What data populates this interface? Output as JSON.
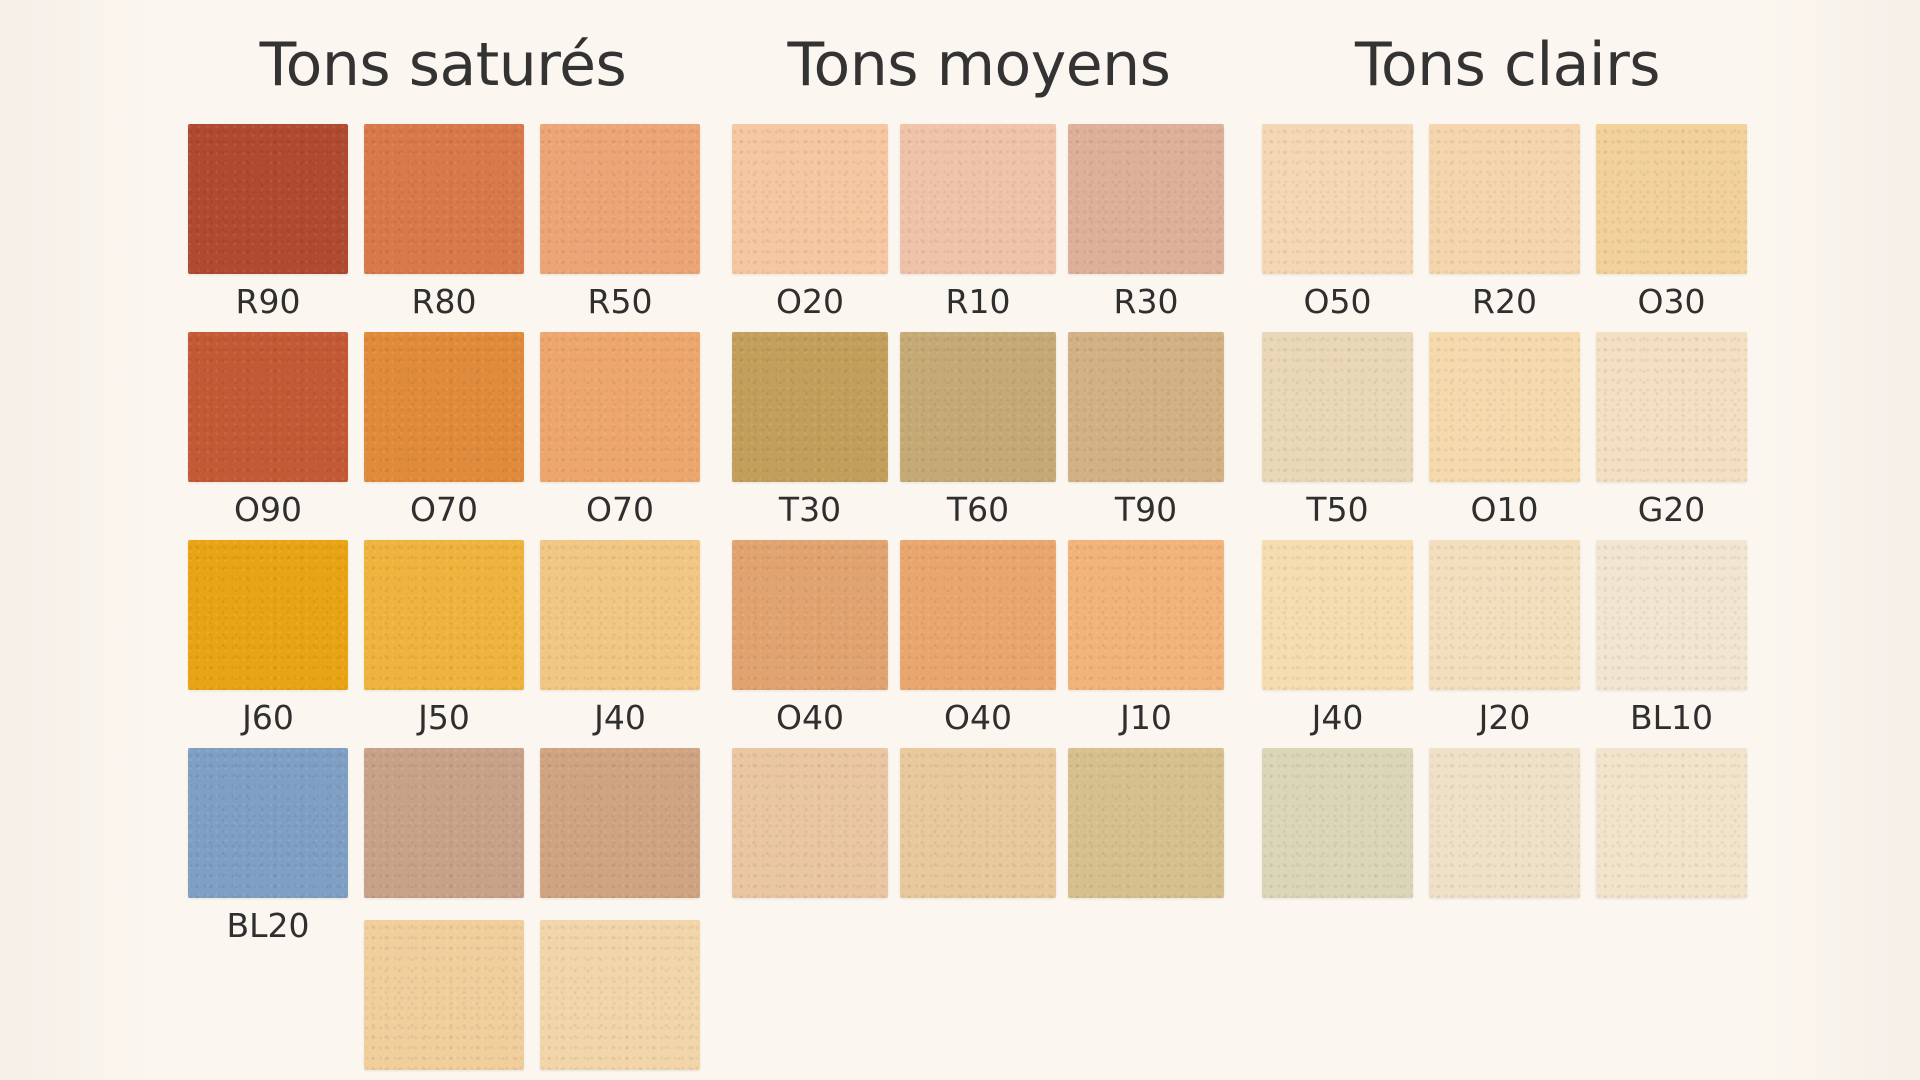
{
  "groups": [
    {
      "title": "Tons saturés",
      "swatches": [
        {
          "code": "R90",
          "color": "#b04a30"
        },
        {
          "code": "R80",
          "color": "#d9784a"
        },
        {
          "code": "R50",
          "color": "#eca577"
        },
        {
          "code": "O90",
          "color": "#c35a35"
        },
        {
          "code": "O70",
          "color": "#e08b3b"
        },
        {
          "code": "O70",
          "color": "#eda76d"
        },
        {
          "code": "J60",
          "color": "#e9a414"
        },
        {
          "code": "J50",
          "color": "#eeb43e"
        },
        {
          "code": "J40",
          "color": "#f2c784"
        },
        {
          "code": "BL20",
          "color": "#809fc4"
        },
        {
          "code": "",
          "color": "#c8a288"
        },
        {
          "code": "",
          "color": "#cfa482"
        },
        {
          "code": "",
          "color": "#f1cf9c"
        },
        {
          "code": "",
          "color": "#f2d6aa"
        }
      ]
    },
    {
      "title": "Tons moyens",
      "swatches": [
        {
          "code": "O20",
          "color": "#f6c7a0"
        },
        {
          "code": "R10",
          "color": "#efc3aa"
        },
        {
          "code": "R30",
          "color": "#ddb09a"
        },
        {
          "code": "T30",
          "color": "#c39f5c"
        },
        {
          "code": "T60",
          "color": "#c6aa76"
        },
        {
          "code": "T90",
          "color": "#d2b184"
        },
        {
          "code": "O40",
          "color": "#e1a470"
        },
        {
          "code": "O40",
          "color": "#e9a76f"
        },
        {
          "code": "J10",
          "color": "#f2b47a"
        },
        {
          "code": "",
          "color": "#eac6a3"
        },
        {
          "code": "",
          "color": "#e7c99c"
        },
        {
          "code": "",
          "color": "#d6c18e"
        }
      ]
    },
    {
      "title": "Tons clairs",
      "swatches": [
        {
          "code": "O50",
          "color": "#f5d7b4"
        },
        {
          "code": "R20",
          "color": "#f5d5ad"
        },
        {
          "code": "O30",
          "color": "#f2d19a"
        },
        {
          "code": "T50",
          "color": "#ead7b8"
        },
        {
          "code": "O10",
          "color": "#f6d9ac"
        },
        {
          "code": "G20",
          "color": "#f3dfc1"
        },
        {
          "code": "J40",
          "color": "#f6dcaf"
        },
        {
          "code": "J20",
          "color": "#f3debe"
        },
        {
          "code": "BL10",
          "color": "#f1e6d0"
        },
        {
          "code": "",
          "color": "#dcd6b8"
        },
        {
          "code": "",
          "color": "#efe1c8"
        },
        {
          "code": "",
          "color": "#f2e3cb"
        }
      ]
    }
  ]
}
